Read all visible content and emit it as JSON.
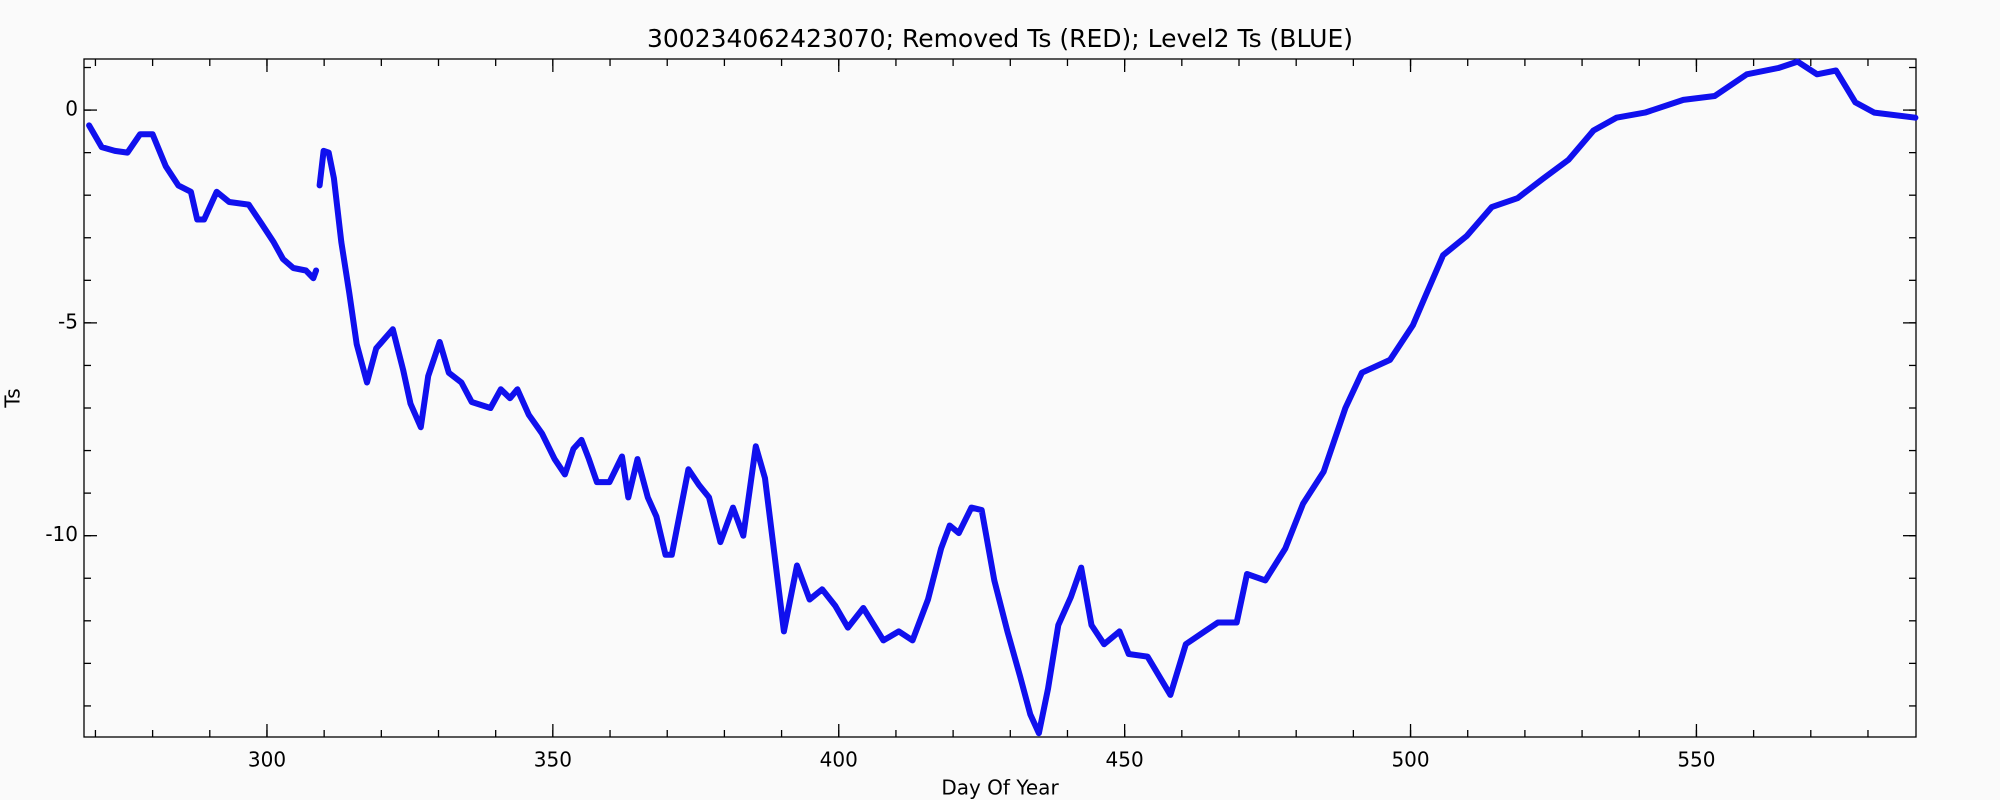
{
  "chart_data": {
    "type": "line",
    "title": "300234062423070; Removed Ts (RED); Level2 Ts (BLUE)",
    "x_label": "Day Of Year",
    "y_label": "Ts",
    "xlim": [
      268,
      588.4
    ],
    "ylim": [
      -14.73,
      1.2
    ],
    "xticks": [
      300,
      350,
      400,
      450,
      500,
      550
    ],
    "yticks": [
      0,
      -5,
      -10
    ],
    "grid": false,
    "x": [
      268.9,
      271.1,
      273.4,
      275.6,
      277.8,
      280.0,
      282.3,
      284.5,
      286.7,
      287.8,
      289.0,
      291.2,
      293.4,
      296.8,
      299.0,
      301.2,
      302.8,
      304.6,
      306.8,
      308.1,
      308.6,
      309.0,
      309.2,
      309.9,
      310.8,
      311.7,
      313.0,
      314.4,
      315.7,
      317.5,
      319.1,
      322.0,
      323.8,
      325.1,
      326.9,
      328.2,
      330.2,
      331.8,
      334.0,
      335.8,
      339.1,
      340.9,
      342.5,
      343.8,
      345.8,
      348.1,
      350.3,
      352.1,
      353.6,
      355.0,
      356.3,
      357.7,
      359.9,
      362.1,
      363.2,
      364.8,
      366.6,
      368.1,
      369.7,
      370.8,
      373.7,
      375.5,
      377.3,
      379.3,
      381.5,
      383.3,
      385.5,
      387.1,
      388.9,
      390.4,
      392.7,
      394.9,
      397.1,
      399.4,
      401.6,
      404.3,
      407.8,
      410.5,
      412.9,
      415.6,
      417.9,
      419.4,
      421.0,
      423.2,
      425.0,
      427.2,
      429.5,
      431.7,
      433.5,
      435.0,
      436.6,
      438.4,
      440.6,
      442.4,
      444.2,
      446.4,
      449.1,
      450.7,
      454.0,
      458.0,
      460.7,
      464.0,
      466.3,
      469.6,
      471.4,
      474.6,
      478.1,
      481.2,
      484.8,
      488.6,
      491.5,
      496.4,
      500.4,
      502.6,
      505.7,
      509.8,
      514.2,
      518.7,
      523.1,
      527.6,
      532.0,
      536.0,
      541.0,
      547.7,
      553.2,
      558.8,
      564.4,
      567.7,
      571.1,
      574.4,
      577.8,
      581.1,
      588.3
    ],
    "series": [
      {
        "name": "Level2 Ts",
        "color": "#1010ee",
        "values": [
          -0.36,
          -0.87,
          -0.96,
          -1.0,
          -0.57,
          -0.57,
          -1.32,
          -1.77,
          -1.92,
          -2.57,
          -2.57,
          -1.92,
          -2.16,
          -2.22,
          -2.66,
          -3.11,
          -3.5,
          -3.71,
          -3.77,
          -3.95,
          -3.77,
          null,
          -1.77,
          -0.96,
          -1.0,
          -1.6,
          -3.1,
          -4.3,
          -5.5,
          -6.4,
          -5.6,
          -5.15,
          -6.1,
          -6.9,
          -7.45,
          -6.25,
          -5.45,
          -6.17,
          -6.4,
          -6.86,
          -7.0,
          -6.56,
          -6.77,
          -6.56,
          -7.16,
          -7.6,
          -8.2,
          -8.56,
          -7.96,
          -7.75,
          -8.2,
          -8.74,
          -8.74,
          -8.14,
          -9.1,
          -8.2,
          -9.1,
          -9.55,
          -10.45,
          -10.45,
          -8.44,
          -8.8,
          -9.1,
          -10.15,
          -9.34,
          -10.0,
          -7.9,
          -8.65,
          -10.6,
          -12.25,
          -10.7,
          -11.5,
          -11.26,
          -11.65,
          -12.16,
          -11.7,
          -12.46,
          -12.25,
          -12.46,
          -11.5,
          -10.3,
          -9.76,
          -9.94,
          -9.34,
          -9.4,
          -11.05,
          -12.25,
          -13.3,
          -14.2,
          -14.64,
          -13.6,
          -12.1,
          -11.44,
          -10.75,
          -12.1,
          -12.55,
          -12.25,
          -12.78,
          -12.84,
          -13.74,
          -12.55,
          -12.25,
          -12.04,
          -12.04,
          -10.9,
          -11.05,
          -10.3,
          -9.25,
          -8.5,
          -7.0,
          -6.17,
          -5.87,
          -5.06,
          -4.37,
          -3.41,
          -2.96,
          -2.28,
          -2.07,
          -1.62,
          -1.17,
          -0.48,
          -0.18,
          -0.06,
          0.24,
          0.33,
          0.84,
          0.99,
          1.14,
          0.84,
          0.93,
          0.18,
          -0.06,
          -0.18
        ]
      }
    ]
  }
}
